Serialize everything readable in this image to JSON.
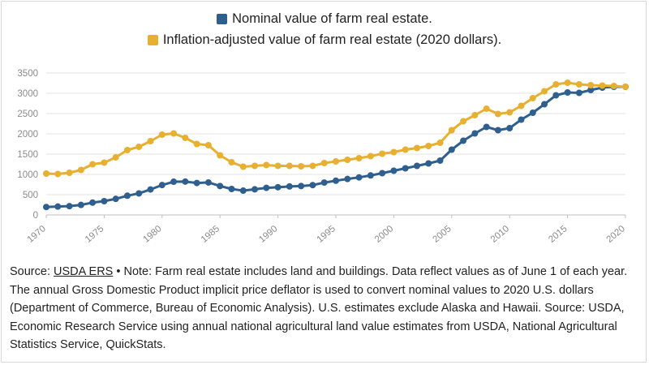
{
  "legend": {
    "nominal_label": "Nominal value of farm real estate.",
    "real_label": "Inflation-adjusted value of farm real estate (2020 dollars)."
  },
  "colors": {
    "nominal": "#2e5f8e",
    "real": "#e8b030",
    "grid": "#e3e3e3",
    "axis": "#bfbfbf"
  },
  "footnote": {
    "source_prefix": "Source:",
    "source_link": "USDA ERS",
    "text": "• Note: Farm real estate includes land and buildings. Data reflect values as of June 1 of each year. The annual Gross Domestic Product implicit price deflator is used to convert nominal values to 2020 U.S. dollars (Department of Commerce, Bureau of Economic Analysis). U.S. estimates exclude Alaska and Hawaii. Source: USDA, Economic Research Service using annual national agricultural land value estimates from USDA, National Agricultural Statistics Service, QuickStats."
  },
  "chart_data": {
    "type": "line",
    "xlim": [
      1970,
      2020
    ],
    "ylim": [
      0,
      3500
    ],
    "x_ticks": [
      "1970",
      "1975",
      "1980",
      "1985",
      "1990",
      "1995",
      "2000",
      "2005",
      "2010",
      "2015",
      "2020"
    ],
    "y_ticks": [
      "0",
      "500",
      "1000",
      "1500",
      "2000",
      "2500",
      "3000",
      "3500"
    ],
    "grid": true,
    "legend_position": "top-center",
    "x": [
      1970,
      1971,
      1972,
      1973,
      1974,
      1975,
      1976,
      1977,
      1978,
      1979,
      1980,
      1981,
      1982,
      1983,
      1984,
      1985,
      1986,
      1987,
      1988,
      1989,
      1990,
      1991,
      1992,
      1993,
      1994,
      1995,
      1996,
      1997,
      1998,
      1999,
      2000,
      2001,
      2002,
      2003,
      2004,
      2005,
      2006,
      2007,
      2008,
      2009,
      2010,
      2011,
      2012,
      2013,
      2014,
      2015,
      2016,
      2017,
      2018,
      2019,
      2020
    ],
    "series": [
      {
        "name": "Nominal value of farm real estate.",
        "color": "#2e5f8e",
        "values": [
          196,
          207,
          217,
          247,
          304,
          340,
          397,
          474,
          531,
          628,
          737,
          819,
          823,
          788,
          801,
          713,
          640,
          599,
          632,
          668,
          683,
          703,
          713,
          736,
          798,
          844,
          887,
          926,
          974,
          1030,
          1090,
          1150,
          1210,
          1270,
          1340,
          1610,
          1830,
          2010,
          2170,
          2090,
          2140,
          2350,
          2520,
          2730,
          2950,
          3020,
          3010,
          3080,
          3140,
          3160,
          3160
        ]
      },
      {
        "name": "Inflation-adjusted value of farm real estate (2020 dollars).",
        "color": "#e8b030",
        "values": [
          1020,
          1010,
          1040,
          1110,
          1250,
          1290,
          1420,
          1600,
          1680,
          1820,
          1980,
          2010,
          1900,
          1750,
          1720,
          1470,
          1300,
          1190,
          1210,
          1230,
          1210,
          1210,
          1200,
          1210,
          1280,
          1320,
          1360,
          1400,
          1450,
          1510,
          1550,
          1610,
          1650,
          1700,
          1780,
          2090,
          2310,
          2460,
          2620,
          2490,
          2530,
          2690,
          2880,
          3050,
          3220,
          3260,
          3220,
          3200,
          3190,
          3180,
          3160
        ]
      }
    ]
  }
}
